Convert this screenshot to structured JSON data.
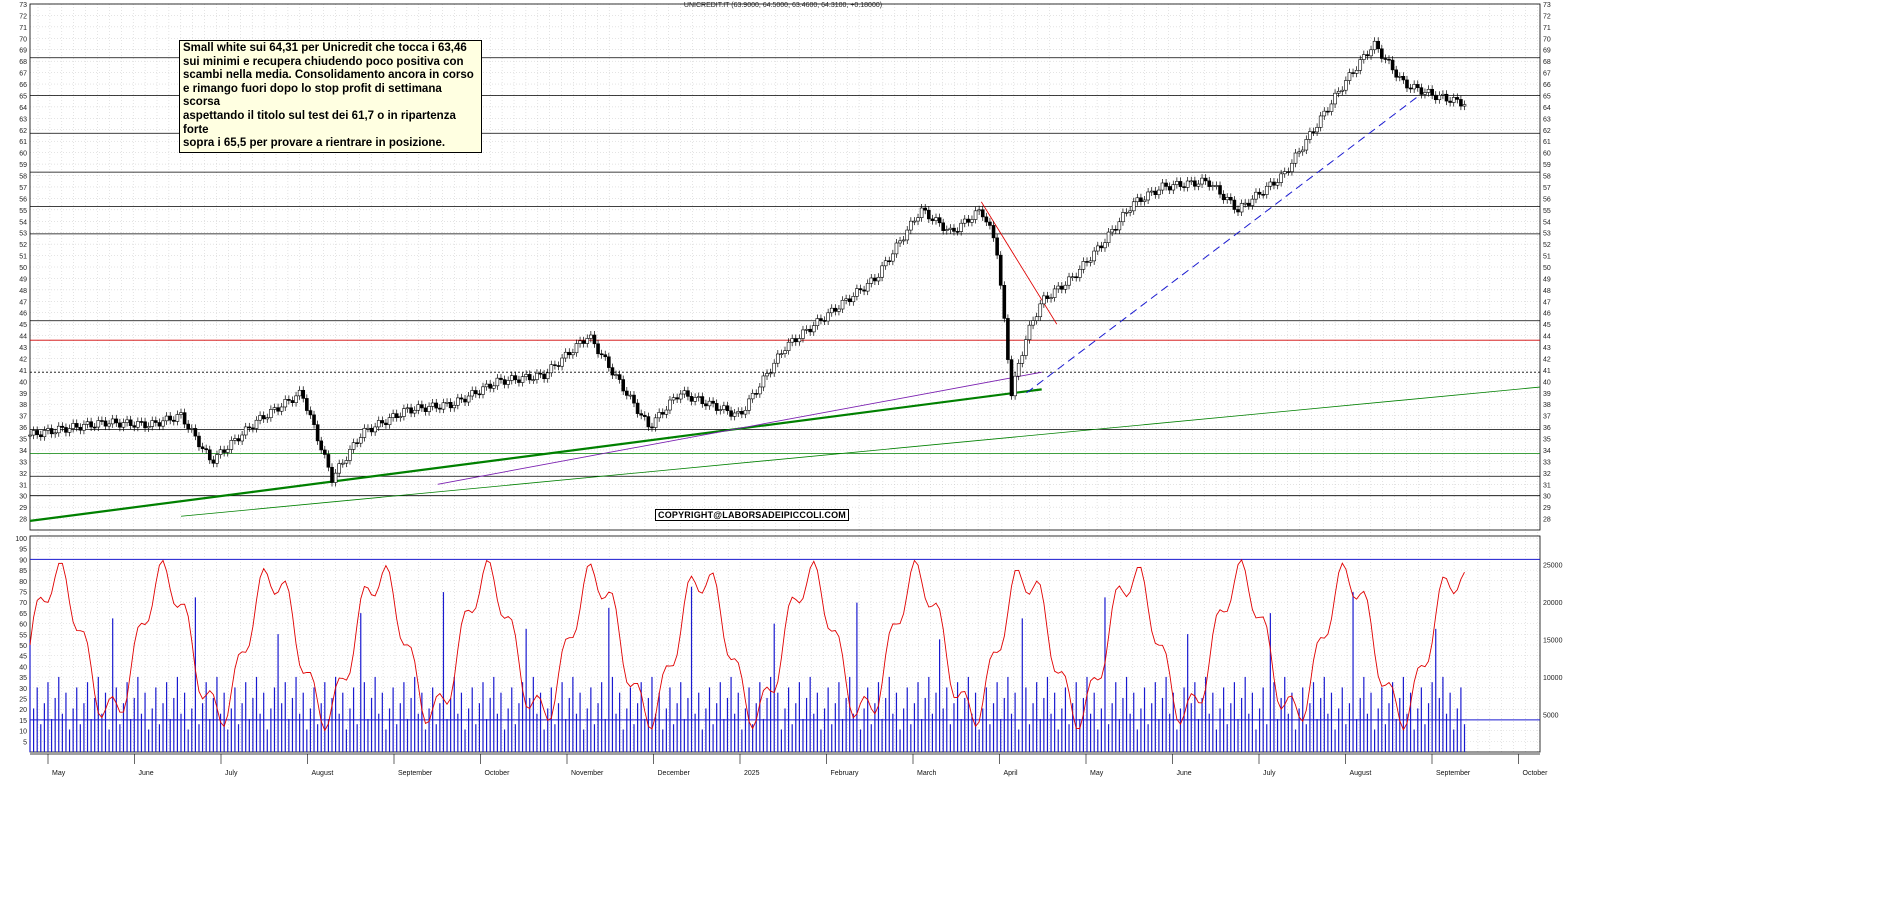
{
  "title": "UNICREDIT.IT (63.9000, 64.5000, 63.4600, 64.3100, +0.18000)",
  "note": "Small white sui 64,31 per Unicredit che tocca i 63,46\nsui minimi e recupera chiudendo poco positiva con\nscambi nella media. Consolidamento ancora in corso\ne rimango fuori dopo lo stop profit di settimana scorsa\naspettando il titolo sul test dei 61,7 o in ripartenza forte\nsopra i 65,5 per provare a rientrare in posizione.",
  "copyright": "COPYRIGHT@LABORSADEIPICCOLI.COM",
  "chart_data": [
    {
      "type": "candlestick",
      "ylim": [
        27,
        73
      ],
      "yticks": [
        28,
        29,
        30,
        31,
        32,
        33,
        34,
        35,
        36,
        37,
        38,
        39,
        40,
        41,
        42,
        43,
        44,
        45,
        46,
        47,
        48,
        49,
        50,
        51,
        52,
        53,
        54,
        55,
        56,
        57,
        58,
        59,
        60,
        61,
        62,
        63,
        64,
        65,
        66,
        67,
        68,
        69,
        70,
        71,
        72,
        73
      ],
      "months": [
        "May",
        "June",
        "July",
        "August",
        "September",
        "October",
        "November",
        "December",
        "2025",
        "February",
        "March",
        "April",
        "May",
        "June",
        "July",
        "August",
        "September",
        "October"
      ],
      "close_path": [
        [
          0,
          35.3
        ],
        [
          0.02,
          35.8
        ],
        [
          0.05,
          36.4
        ],
        [
          0.08,
          36.2
        ],
        [
          0.1,
          37
        ],
        [
          0.12,
          33
        ],
        [
          0.15,
          36.5
        ],
        [
          0.18,
          39
        ],
        [
          0.2,
          31.5
        ],
        [
          0.22,
          35.5
        ],
        [
          0.25,
          37.5
        ],
        [
          0.28,
          38
        ],
        [
          0.31,
          40
        ],
        [
          0.34,
          40.5
        ],
        [
          0.37,
          44
        ],
        [
          0.39,
          40
        ],
        [
          0.41,
          36
        ],
        [
          0.43,
          39
        ],
        [
          0.45,
          38
        ],
        [
          0.47,
          37
        ],
        [
          0.5,
          43
        ],
        [
          0.53,
          46
        ],
        [
          0.56,
          49
        ],
        [
          0.59,
          55
        ],
        [
          0.61,
          53
        ],
        [
          0.63,
          55
        ],
        [
          0.64,
          52
        ],
        [
          0.65,
          39
        ],
        [
          0.66,
          44
        ],
        [
          0.67,
          47
        ],
        [
          0.69,
          49
        ],
        [
          0.71,
          52
        ],
        [
          0.73,
          55.5
        ],
        [
          0.75,
          57
        ],
        [
          0.78,
          57.5
        ],
        [
          0.8,
          55
        ],
        [
          0.83,
          58
        ],
        [
          0.85,
          62
        ],
        [
          0.87,
          66
        ],
        [
          0.89,
          69.5
        ],
        [
          0.91,
          66
        ],
        [
          0.93,
          65
        ],
        [
          0.95,
          64.31
        ]
      ],
      "horizontal_levels": [
        30,
        31.7,
        33.7,
        35.8,
        40.8,
        43.6,
        45.3,
        52.9,
        55.3,
        58.3,
        61.7,
        65,
        68.3
      ],
      "last": {
        "open": 63.9,
        "high": 64.5,
        "low": 63.46,
        "close": 64.31,
        "change": 0.18
      }
    },
    {
      "type": "line",
      "name": "oscillator",
      "ylim": [
        0,
        100
      ],
      "yticks": [
        5,
        10,
        15,
        20,
        25,
        30,
        35,
        40,
        45,
        50,
        55,
        60,
        65,
        70,
        75,
        80,
        85,
        90,
        95,
        100
      ],
      "levels": [
        15,
        90
      ]
    },
    {
      "type": "bar",
      "name": "volume",
      "yticks": [
        5000,
        10000,
        15000,
        20000,
        25000
      ],
      "ylim": [
        0,
        28500
      ]
    }
  ],
  "colors": {
    "candle": "#000000",
    "osc": "#e00000",
    "volume": "#1a1ad0",
    "support": "#008000",
    "purple": "#7a1fb0"
  }
}
